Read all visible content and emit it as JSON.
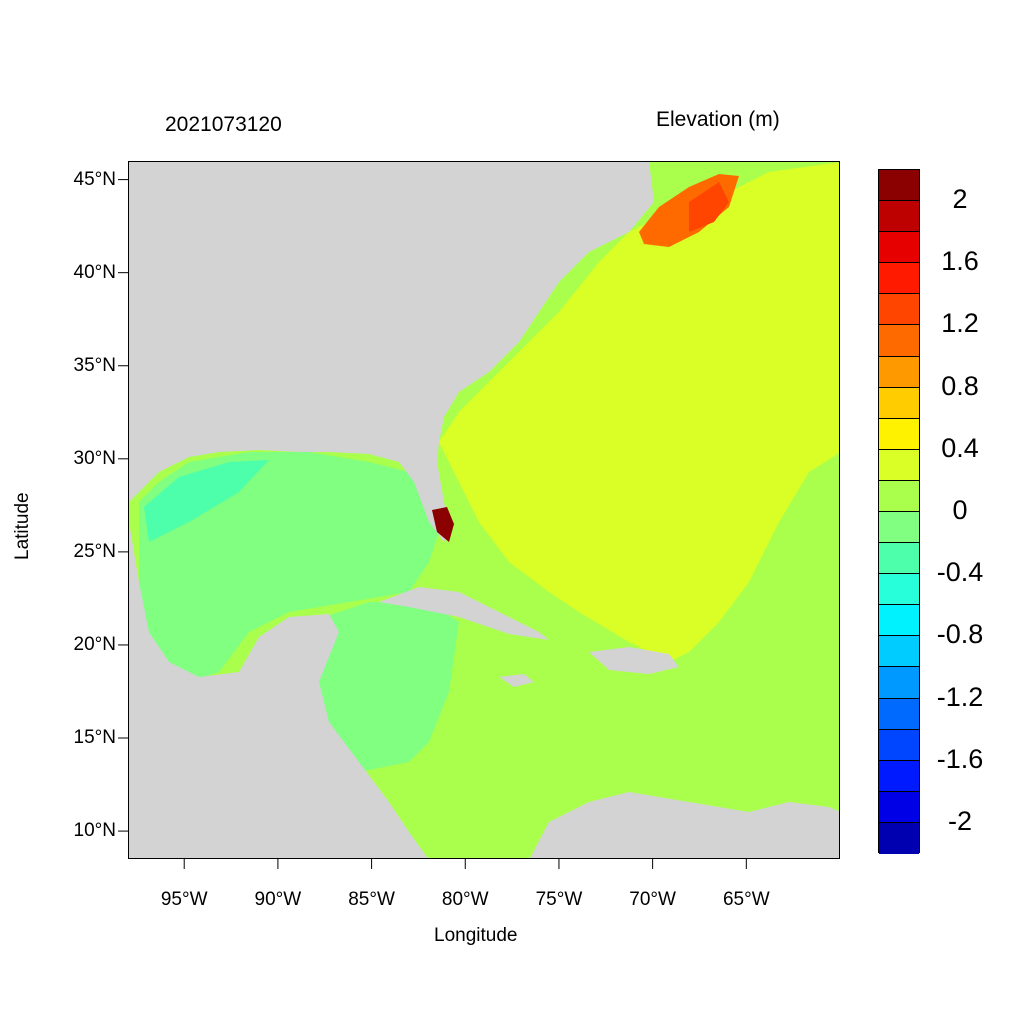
{
  "title": {
    "left": "2021073120",
    "right": "Elevation (m)"
  },
  "axes": {
    "xlabel": "Longitude",
    "ylabel": "Latitude",
    "lon_range": [
      -98,
      -60
    ],
    "lat_range": [
      8.5,
      46
    ],
    "xticks": [
      {
        "lon": -95,
        "label": "95°W"
      },
      {
        "lon": -90,
        "label": "90°W"
      },
      {
        "lon": -85,
        "label": "85°W"
      },
      {
        "lon": -80,
        "label": "80°W"
      },
      {
        "lon": -75,
        "label": "75°W"
      },
      {
        "lon": -70,
        "label": "70°W"
      },
      {
        "lon": -65,
        "label": "65°W"
      }
    ],
    "yticks": [
      {
        "lat": 45,
        "label": "45°N"
      },
      {
        "lat": 40,
        "label": "40°N"
      },
      {
        "lat": 35,
        "label": "35°N"
      },
      {
        "lat": 30,
        "label": "30°N"
      },
      {
        "lat": 25,
        "label": "25°N"
      },
      {
        "lat": 20,
        "label": "20°N"
      },
      {
        "lat": 15,
        "label": "15°N"
      },
      {
        "lat": 10,
        "label": "10°N"
      }
    ]
  },
  "colorbar": {
    "min": -2.2,
    "max": 2.2,
    "colors_top_to_bottom": [
      "#8b0000",
      "#bd0000",
      "#e60000",
      "#ff1a00",
      "#ff4500",
      "#ff6a00",
      "#ff9900",
      "#ffcc00",
      "#fff200",
      "#d9ff26",
      "#aaff4d",
      "#80ff80",
      "#4dffaa",
      "#26ffd9",
      "#00f2ff",
      "#00ccff",
      "#0099ff",
      "#006aff",
      "#0045ff",
      "#001aff",
      "#0000e6",
      "#0000b0"
    ],
    "labels": [
      "2",
      "1.6",
      "1.2",
      "0.8",
      "0.4",
      "0",
      "-0.4",
      "-0.8",
      "-1.2",
      "-1.6",
      "-2"
    ]
  },
  "colors": {
    "land": "#d3d3d3",
    "border": "#000000"
  }
}
